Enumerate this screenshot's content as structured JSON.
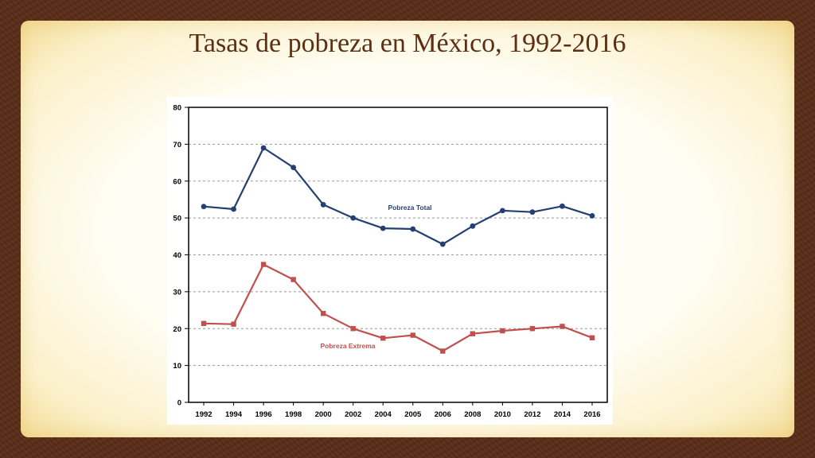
{
  "slide": {
    "title": "Tasas de pobreza en México, 1992-2016"
  },
  "colors": {
    "total": "#243f72",
    "extrema": "#c0504d",
    "grid": "#9a9a9a",
    "title": "#5c2f12"
  },
  "chart_data": {
    "type": "line",
    "categories": [
      "1992",
      "1994",
      "1996",
      "1998",
      "2000",
      "2002",
      "2004",
      "2005",
      "2006",
      "2008",
      "2010",
      "2012",
      "2014",
      "2016"
    ],
    "series": [
      {
        "name": "Pobreza Total",
        "marker": "circle",
        "values": [
          53.1,
          52.4,
          69.0,
          63.7,
          53.6,
          50.0,
          47.2,
          47.0,
          42.9,
          47.8,
          52.0,
          51.6,
          53.2,
          50.6
        ]
      },
      {
        "name": "Pobreza Extrema",
        "marker": "square",
        "values": [
          21.4,
          21.2,
          37.4,
          33.3,
          24.1,
          20.0,
          17.4,
          18.2,
          13.9,
          18.6,
          19.4,
          20.0,
          20.6,
          17.5
        ]
      }
    ],
    "ylim": [
      0,
      80
    ],
    "yticks": [
      "0",
      "10",
      "20",
      "30",
      "40",
      "50",
      "60",
      "70",
      "80"
    ],
    "grid": "horizontal dashed",
    "title": "",
    "xlabel": "",
    "ylabel": ""
  }
}
